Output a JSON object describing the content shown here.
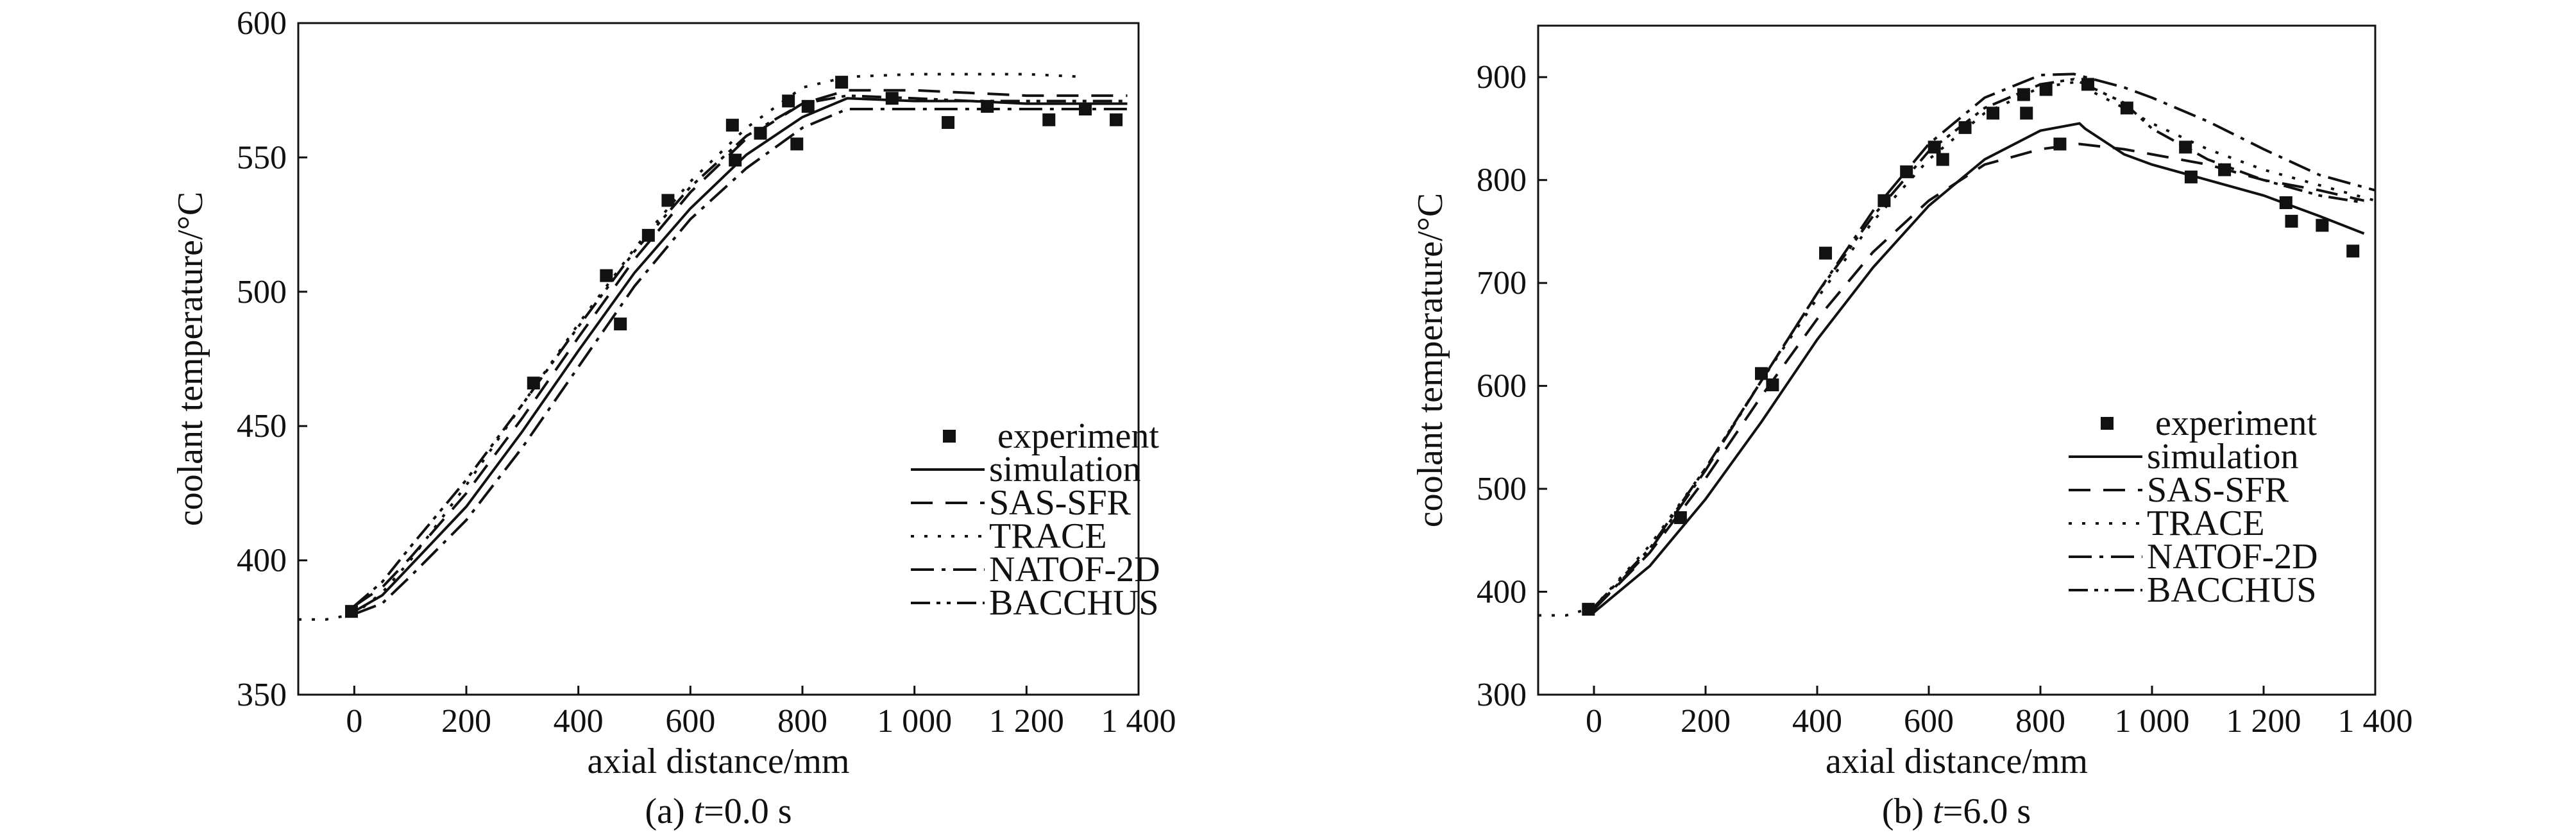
{
  "chart_data": [
    {
      "type": "line",
      "caption_prefix": "(a) ",
      "caption_var": "t",
      "caption_suffix": "=0.0 s",
      "xlabel": "axial distance/mm",
      "ylabel": "coolant temperature/°C",
      "xlim": [
        -100,
        1400
      ],
      "ylim": [
        350,
        600
      ],
      "xticks": [
        0,
        200,
        400,
        600,
        800,
        1000,
        1200,
        1400
      ],
      "xtick_labels": [
        "0",
        "200",
        "400",
        "600",
        "800",
        "1 000",
        "1 200",
        "1 400"
      ],
      "yticks": [
        350,
        400,
        450,
        500,
        550,
        600
      ],
      "ytick_labels": [
        "350",
        "400",
        "450",
        "500",
        "550",
        "600"
      ],
      "legend_position": "bottom-right",
      "experiment": {
        "name": "experiment",
        "x": [
          -5,
          320,
          450,
          475,
          525,
          560,
          675,
          680,
          725,
          775,
          790,
          810,
          870,
          960,
          1060,
          1130,
          1240,
          1305,
          1360
        ],
        "y": [
          381,
          466,
          506,
          488,
          521,
          534,
          562,
          549,
          559,
          571,
          555,
          569,
          578,
          572,
          563,
          569,
          564,
          568,
          564
        ]
      },
      "series": [
        {
          "name": "simulation",
          "dash": "",
          "x": [
            0,
            50,
            100,
            200,
            300,
            400,
            500,
            600,
            700,
            800,
            880,
            1000,
            1100,
            1200,
            1300,
            1380
          ],
          "y": [
            381,
            387,
            398,
            420,
            448,
            478,
            507,
            531,
            551,
            565,
            572,
            571,
            571,
            570,
            570,
            570
          ]
        },
        {
          "name": "SAS-SFR",
          "dash": "34,20",
          "x": [
            0,
            50,
            100,
            200,
            300,
            400,
            500,
            600,
            700,
            800,
            880,
            1000,
            1100,
            1200,
            1300,
            1380
          ],
          "y": [
            383,
            390,
            401,
            425,
            453,
            483,
            512,
            537,
            557,
            570,
            575,
            575,
            574,
            573,
            573,
            573
          ]
        },
        {
          "name": "TRACE",
          "dash": "5,16",
          "x": [
            -100,
            -50,
            0,
            50,
            100,
            200,
            300,
            400,
            500,
            600,
            700,
            800,
            880,
            1000,
            1100,
            1200,
            1300
          ],
          "y": [
            378,
            378,
            380,
            388,
            400,
            428,
            458,
            488,
            516,
            541,
            561,
            576,
            580,
            581,
            581,
            581,
            580
          ]
        },
        {
          "name": "NATOF-2D",
          "dash": "36,12,6,12",
          "x": [
            0,
            50,
            100,
            200,
            300,
            400,
            500,
            600,
            700,
            800,
            880,
            1000,
            1100,
            1200,
            1300,
            1380
          ],
          "y": [
            380,
            384,
            394,
            415,
            442,
            472,
            502,
            527,
            546,
            561,
            568,
            568,
            568,
            568,
            568,
            568
          ]
        },
        {
          "name": "BACCHUS",
          "dash": "30,10,6,10,6,10",
          "x": [
            0,
            50,
            100,
            200,
            300,
            400,
            500,
            600,
            700,
            800,
            880,
            1000,
            1100,
            1200,
            1300,
            1380
          ],
          "y": [
            383,
            392,
            405,
            430,
            458,
            487,
            515,
            539,
            558,
            570,
            573,
            572,
            571,
            571,
            571,
            571
          ]
        }
      ]
    },
    {
      "type": "line",
      "caption_prefix": "(b) ",
      "caption_var": "t",
      "caption_suffix": "=6.0 s",
      "xlabel": "axial distance/mm",
      "ylabel": "coolant temperature/°C",
      "xlim": [
        -100,
        1400
      ],
      "ylim": [
        300,
        950
      ],
      "xticks": [
        0,
        200,
        400,
        600,
        800,
        1000,
        1200,
        1400
      ],
      "xtick_labels": [
        "0",
        "200",
        "400",
        "600",
        "800",
        "1 000",
        "1 200",
        "1 400"
      ],
      "yticks": [
        300,
        400,
        500,
        600,
        700,
        800,
        900
      ],
      "ytick_labels": [
        "300",
        "400",
        "500",
        "600",
        "700",
        "800",
        "900"
      ],
      "legend_position": "bottom-right",
      "experiment": {
        "name": "experiment",
        "x": [
          -10,
          155,
          300,
          320,
          415,
          520,
          560,
          610,
          625,
          665,
          715,
          770,
          775,
          810,
          835,
          885,
          955,
          1060,
          1070,
          1130,
          1240,
          1250,
          1305,
          1360
        ],
        "y": [
          383,
          472,
          612,
          601,
          729,
          780,
          808,
          832,
          820,
          851,
          865,
          883,
          865,
          888,
          835,
          893,
          870,
          832,
          803,
          810,
          778,
          760,
          756,
          731
        ]
      },
      "series": [
        {
          "name": "simulation",
          "dash": "",
          "x": [
            0,
            100,
            200,
            300,
            400,
            500,
            600,
            700,
            800,
            870,
            880,
            950,
            1000,
            1100,
            1200,
            1300,
            1380
          ],
          "y": [
            380,
            425,
            490,
            565,
            645,
            715,
            775,
            820,
            848,
            855,
            850,
            825,
            815,
            800,
            785,
            765,
            748
          ]
        },
        {
          "name": "SAS-SFR",
          "dash": "34,20",
          "x": [
            0,
            100,
            200,
            300,
            400,
            500,
            600,
            700,
            800,
            870,
            950,
            1000,
            1100,
            1200,
            1300,
            1380
          ],
          "y": [
            383,
            438,
            510,
            590,
            665,
            730,
            780,
            815,
            830,
            835,
            830,
            825,
            815,
            800,
            790,
            780
          ]
        },
        {
          "name": "TRACE",
          "dash": "5,16",
          "x": [
            -100,
            -50,
            0,
            100,
            200,
            300,
            400,
            500,
            600,
            700,
            800,
            860,
            950,
            1000,
            1100,
            1200,
            1300,
            1400
          ],
          "y": [
            377,
            377,
            385,
            445,
            520,
            605,
            685,
            760,
            820,
            865,
            890,
            895,
            870,
            855,
            830,
            810,
            795,
            780
          ]
        },
        {
          "name": "NATOF-2D",
          "dash": "36,12,6,12",
          "x": [
            0,
            100,
            200,
            300,
            400,
            500,
            600,
            700,
            800,
            860,
            950,
            1000,
            1100,
            1200,
            1300,
            1400
          ],
          "y": [
            383,
            440,
            518,
            605,
            690,
            770,
            835,
            880,
            902,
            903,
            890,
            880,
            857,
            830,
            805,
            790
          ]
        },
        {
          "name": "BACCHUS",
          "dash": "30,10,6,10,6,10",
          "x": [
            0,
            100,
            200,
            300,
            400,
            500,
            600,
            700,
            800,
            860,
            950,
            1000,
            1100,
            1200,
            1300,
            1380
          ],
          "y": [
            385,
            442,
            520,
            605,
            690,
            765,
            828,
            870,
            893,
            898,
            875,
            850,
            820,
            800,
            785,
            778
          ]
        }
      ]
    }
  ]
}
